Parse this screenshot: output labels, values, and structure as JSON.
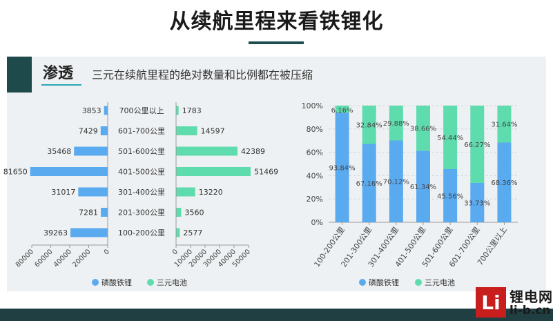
{
  "header": {
    "title": "从续航里程来看铁锂化"
  },
  "section": {
    "label": "渗透",
    "subtitle": "三元在续航里程的绝对数量和比例都在被压缩"
  },
  "colors": {
    "lfp": "#5aaaf0",
    "ncm": "#5fdcae"
  },
  "chart_data": [
    {
      "type": "bar",
      "orientation": "horizontal-butterfly",
      "categories": [
        "700公里以上",
        "601-700公里",
        "501-600公里",
        "401-500公里",
        "301-400公里",
        "201-300公里",
        "100-200公里"
      ],
      "series": [
        {
          "name": "磷酸铁锂",
          "values": [
            3853,
            7429,
            35468,
            81650,
            31017,
            7281,
            39263
          ]
        },
        {
          "name": "三元电池",
          "values": [
            1783,
            14597,
            42389,
            51469,
            13220,
            3560,
            2577
          ]
        }
      ],
      "left_axis": {
        "range": [
          0,
          80000
        ],
        "ticks": [
          "80000",
          "60000",
          "40000",
          "20000",
          "0"
        ]
      },
      "right_axis": {
        "range": [
          0,
          50000
        ],
        "ticks": [
          "0",
          "10000",
          "20000",
          "30000",
          "40000",
          "50000"
        ]
      },
      "legend": [
        "磷酸铁锂",
        "三元电池"
      ],
      "legend_position": "bottom"
    },
    {
      "type": "bar",
      "stacked": true,
      "percent": true,
      "categories": [
        "100-200公里",
        "201-300公里",
        "301-400公里",
        "401-500公里",
        "501-600公里",
        "601-700公里",
        "700公里以上"
      ],
      "series": [
        {
          "name": "磷酸铁锂",
          "values": [
            93.84,
            67.16,
            70.12,
            61.34,
            45.56,
            33.73,
            68.36
          ],
          "labels": [
            "93.84%",
            "67.16%",
            "70.12%",
            "61.34%",
            "45.56%",
            "33.73%",
            "68.36%"
          ]
        },
        {
          "name": "三元电池",
          "values": [
            6.16,
            32.84,
            29.88,
            38.66,
            54.44,
            66.27,
            31.64
          ],
          "labels": [
            "6.16%",
            "32.84%",
            "29.88%",
            "38.66%",
            "54.44%",
            "66.27%",
            "31.64%"
          ]
        }
      ],
      "ylim": [
        0,
        100
      ],
      "yticks": [
        "0%",
        "20%",
        "40%",
        "60%",
        "80%",
        "100%"
      ],
      "grid": true,
      "legend": [
        "磷酸铁锂",
        "三元电池"
      ],
      "legend_position": "bottom"
    }
  ],
  "logo": {
    "glyph": "Li",
    "name_cn": "锂电网",
    "url": "li-b.cn"
  }
}
